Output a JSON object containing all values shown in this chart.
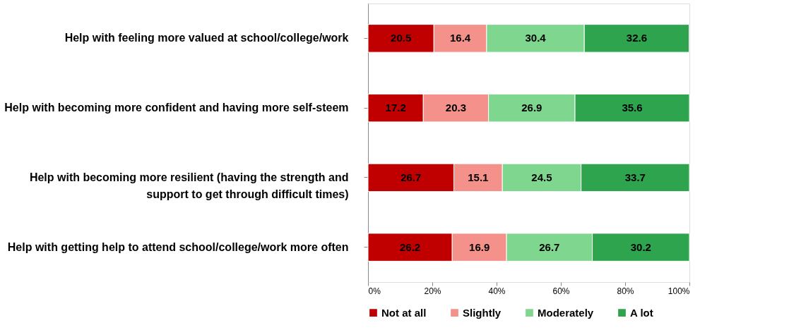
{
  "chart_data": {
    "type": "bar",
    "orientation": "horizontal",
    "stacked": true,
    "data_labels": true,
    "legend": "bottom",
    "grid": false,
    "categories": [
      "Help with feeling more valued at school/college/work",
      "Help with becoming more confident and having more self-steem",
      "Help with becoming more resilient  (having the strength and\nsupport to get through difficult times)",
      "Help with getting help to attend school/college/work more often"
    ],
    "series": [
      {
        "name": "Not at all",
        "color": "#c00000",
        "values": [
          20.5,
          17.2,
          26.7,
          26.2
        ]
      },
      {
        "name": "Slightly",
        "color": "#f4918a",
        "values": [
          16.4,
          20.3,
          15.1,
          16.9
        ]
      },
      {
        "name": "Moderately",
        "color": "#7fd68f",
        "values": [
          30.4,
          26.9,
          24.5,
          26.7
        ]
      },
      {
        "name": "A lot",
        "color": "#2ea44f",
        "values": [
          32.6,
          35.6,
          33.7,
          30.2
        ]
      }
    ],
    "xlim": [
      0,
      100
    ],
    "xticks": [
      {
        "value": 0,
        "label": "0%"
      },
      {
        "value": 20,
        "label": "20%"
      },
      {
        "value": 40,
        "label": "40%"
      },
      {
        "value": 60,
        "label": "60%"
      },
      {
        "value": 80,
        "label": "80%"
      },
      {
        "value": 100,
        "label": "100%"
      }
    ]
  }
}
